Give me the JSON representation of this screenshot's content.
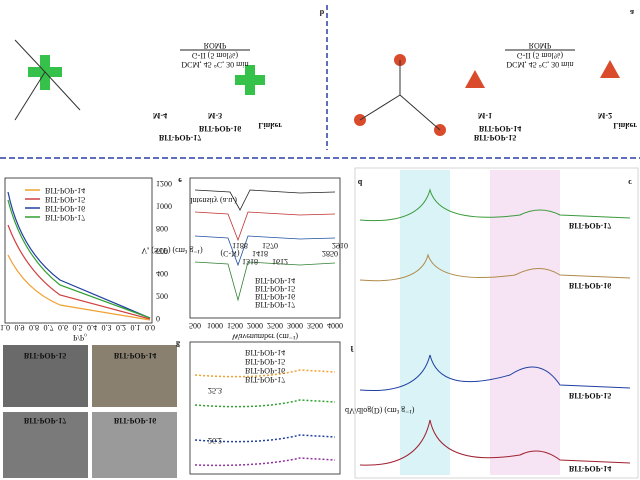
{
  "panel_labels": [
    "a",
    "b",
    "c",
    "d",
    "e",
    "f",
    "g"
  ],
  "scheme_a": {
    "reaction": "ROMP",
    "catalyst": "G-II (5 mol%)",
    "conditions": "DCM, 45 °C, 30 min",
    "monomers": [
      "M-1",
      "M-2"
    ],
    "linker": "Linker",
    "products": [
      "BIT-POP-14",
      "BIT-POP-15"
    ]
  },
  "scheme_b": {
    "reaction": "ROMP",
    "catalyst": "G-II (5 mol%)",
    "conditions": "DCM, 45 °C, 30 min",
    "monomers": [
      "M-3",
      "M-4"
    ],
    "linker": "Linker",
    "products": [
      "BIT-POP-16",
      "BIT-POP-17"
    ]
  },
  "isotherm": {
    "legend": [
      "BIT-POP-14",
      "BIT-POP-15",
      "BIT-POP-16",
      "BIT-POP-17"
    ],
    "xlabel": "P/P₀",
    "ylabel": "Vₐ (STP) (cm³ g⁻¹)",
    "xticks": [
      "0.0",
      "0.1",
      "0.2",
      "0.3",
      "0.4",
      "0.5",
      "0.6",
      "0.7",
      "0.8",
      "0.9",
      "1.0"
    ],
    "yticks": [
      "0",
      "200",
      "400",
      "600",
      "800",
      "1000",
      "1200"
    ]
  },
  "ftir": {
    "legend": [
      "BIT-POP-14",
      "BIT-POP-15",
      "BIT-POP-16",
      "BIT-POP-17"
    ],
    "xlabel": "Wavenumber (cm⁻¹)",
    "ylabel": "Intensity (a.u.)",
    "xticks": [
      "4000",
      "3500",
      "3000",
      "2500",
      "2000",
      "1500",
      "1000",
      "500"
    ],
    "annotations": [
      "2910",
      "2850",
      "1612",
      "1570",
      "1418",
      "1318",
      "1188",
      "(C-N)"
    ]
  },
  "pore": {
    "legend": [
      "BIT-POP-14",
      "BIT-POP-15",
      "BIT-POP-16",
      "BIT-POP-17"
    ],
    "ylabel": "dV/dlog(D) (cm³ g⁻¹)",
    "annotations": [
      "25.3",
      "26.2"
    ]
  },
  "sem": {
    "labels": [
      "BIT-POP-15",
      "BIT-POP-14",
      "BIT-POP-17",
      "BIT-POP-16"
    ]
  },
  "nmr_c": {
    "labels": [
      "BIT-POP-17",
      "BIT-POP-16"
    ]
  },
  "nmr_f": {
    "labels": [
      "BIT-POP-15",
      "BIT-POP-14"
    ]
  }
}
